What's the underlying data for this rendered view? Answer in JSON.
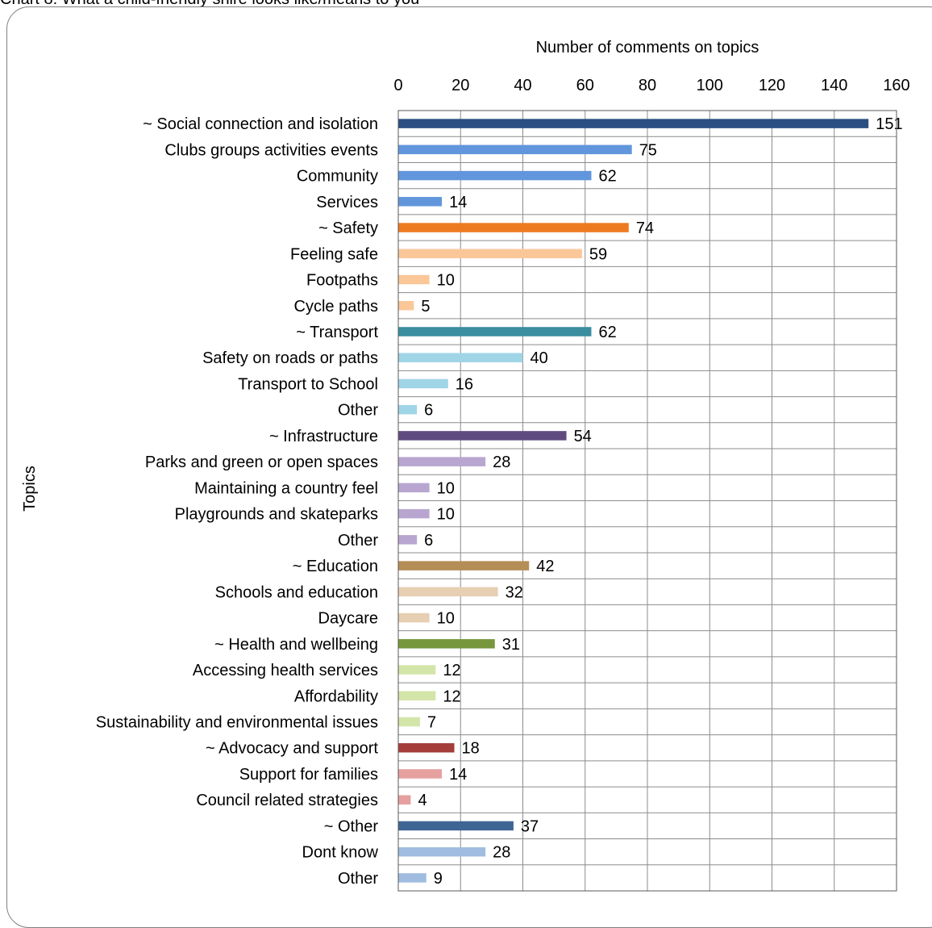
{
  "page": {
    "caption": "Chart 8: What a child-friendly shire looks like/means to you"
  },
  "chart_data": {
    "type": "bar",
    "orientation": "horizontal",
    "title": "",
    "xlabel": "Number of comments on topics",
    "ylabel": "Topics",
    "xlim": [
      0,
      160
    ],
    "x_ticks": [
      "0",
      "20",
      "40",
      "60",
      "80",
      "100",
      "120",
      "140",
      "160"
    ],
    "x_axis_position": "top",
    "grid": true,
    "legend": "none",
    "data_labels": true,
    "categories": [
      "~ Social connection and isolation",
      "Clubs groups activities events",
      "Community ",
      "Services",
      "~ Safety",
      "Feeling safe",
      "Footpaths",
      "Cycle paths",
      "~ Transport",
      "Safety on roads or paths",
      "Transport to School",
      "Other",
      "~ Infrastructure",
      "Parks and green or open spaces",
      "Maintaining a country feel",
      "Playgrounds and skateparks",
      "Other",
      "~ Education",
      "Schools and education",
      "Daycare",
      "~ Health and wellbeing",
      "Accessing health services",
      "Affordability",
      "Sustainability and environmental issues",
      "~ Advocacy and support",
      "Support for families",
      "Council related strategies",
      "~ Other",
      "Dont know",
      "Other "
    ],
    "values": [
      151,
      75,
      62,
      14,
      74,
      59,
      10,
      5,
      62,
      40,
      16,
      6,
      54,
      28,
      10,
      10,
      6,
      42,
      32,
      10,
      31,
      12,
      12,
      7,
      18,
      14,
      4,
      37,
      28,
      9
    ],
    "colors": [
      "#2b4f81",
      "#6196dc",
      "#6196dc",
      "#6196dc",
      "#ee7a20",
      "#fbc799",
      "#fbc799",
      "#fbc799",
      "#3b8da0",
      "#9fd5e7",
      "#9fd5e7",
      "#9fd5e7",
      "#604b80",
      "#b8a6d0",
      "#b8a6d0",
      "#b8a6d0",
      "#b8a6d0",
      "#b58d56",
      "#e6cfb2",
      "#e6cfb2",
      "#77973c",
      "#d4e5a9",
      "#d4e5a9",
      "#d4e5a9",
      "#a43e3b",
      "#e6a09f",
      "#e6a09f",
      "#3f6595",
      "#a0bce0",
      "#a0bce0"
    ]
  }
}
